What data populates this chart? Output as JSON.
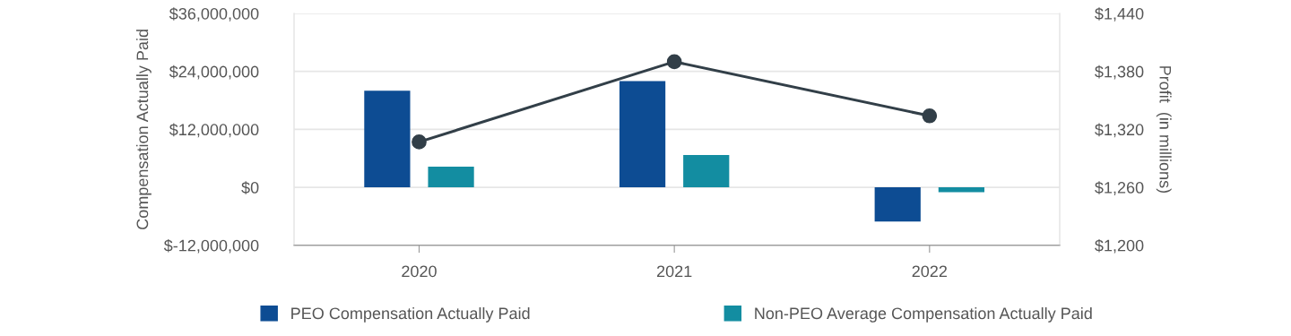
{
  "chart_data": {
    "type": "bar",
    "categories": [
      "2020",
      "2021",
      "2022"
    ],
    "series": [
      {
        "name": "PEO Compensation Actually Paid",
        "color": "#0d4c93",
        "values": [
          20000000,
          22000000,
          -7100000
        ]
      },
      {
        "name": "Non-PEO Average Compensation Actually Paid",
        "color": "#138da1",
        "values": [
          4300000,
          6700000,
          -1000000
        ]
      },
      {
        "type": "line",
        "axis": "y2",
        "color": "#323f48",
        "values": [
          1307,
          1390,
          1334
        ]
      }
    ],
    "ylabel": "Compensation Actually Paid",
    "y2label": "Profit  (in millions)",
    "ylim": [
      -12000000,
      36000000
    ],
    "yticks": [
      {
        "value": -12000000,
        "label": "$-12,000,000"
      },
      {
        "value": 0,
        "label": "$0"
      },
      {
        "value": 12000000,
        "label": "$12,000,000"
      },
      {
        "value": 24000000,
        "label": "$24,000,000"
      },
      {
        "value": 36000000,
        "label": "$36,000,000"
      }
    ],
    "y2lim": [
      1200,
      1440
    ],
    "y2ticks": [
      {
        "value": 1200,
        "label": "$1,200"
      },
      {
        "value": 1260,
        "label": "$1,260"
      },
      {
        "value": 1320,
        "label": "$1,320"
      },
      {
        "value": 1380,
        "label": "$1,380"
      },
      {
        "value": 1440,
        "label": "$1,440"
      }
    ],
    "grid": "y",
    "legend": "bottom",
    "marker": "circle"
  }
}
